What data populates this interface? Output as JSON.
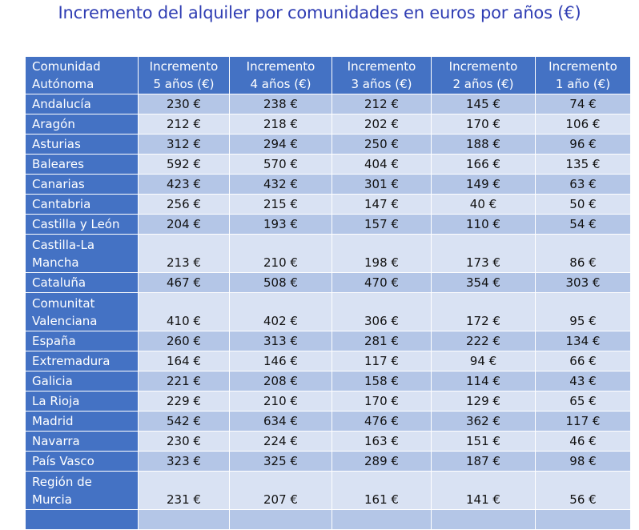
{
  "title": "Incremento del alquiler por comunidades en euros por años (€)",
  "colors": {
    "header": "#4472C4",
    "row_dark": "#B4C6E7",
    "row_light": "#D9E2F3",
    "title": "#2F3DB3"
  },
  "table": {
    "headers": [
      [
        "Comunidad",
        "Autónoma"
      ],
      [
        "Incremento",
        "5 años (€)"
      ],
      [
        "Incremento",
        "4 años (€)"
      ],
      [
        "Incremento",
        "3 años (€)"
      ],
      [
        "Incremento",
        "2 años (€)"
      ],
      [
        "Incremento",
        "1 año (€)"
      ]
    ],
    "rows": [
      {
        "name": "Andalucía",
        "values": [
          "230 €",
          "238 €",
          "212 €",
          "145 €",
          "74 €"
        ]
      },
      {
        "name": "Aragón",
        "values": [
          "212 €",
          "218 €",
          "202 €",
          "170 €",
          "106 €"
        ]
      },
      {
        "name": "Asturias",
        "values": [
          "312 €",
          "294 €",
          "250 €",
          "188 €",
          "96 €"
        ]
      },
      {
        "name": "Baleares",
        "values": [
          "592 €",
          "570 €",
          "404 €",
          "166 €",
          "135 €"
        ]
      },
      {
        "name": "Canarias",
        "values": [
          "423 €",
          "432 €",
          "301 €",
          "149 €",
          "63 €"
        ]
      },
      {
        "name": "Cantabria",
        "values": [
          "256 €",
          "215 €",
          "147 €",
          "40 €",
          "50 €"
        ]
      },
      {
        "name": "Castilla y León",
        "values": [
          "204 €",
          "193 €",
          "157 €",
          "110 €",
          "54 €"
        ]
      },
      {
        "name": "Castilla-La Mancha",
        "values": [
          "213 €",
          "210 €",
          "198 €",
          "173 €",
          "86 €"
        ]
      },
      {
        "name": "Cataluña",
        "values": [
          "467 €",
          "508 €",
          "470 €",
          "354 €",
          "303 €"
        ]
      },
      {
        "name": "Comunitat Valenciana",
        "values": [
          "410 €",
          "402 €",
          "306 €",
          "172 €",
          "95 €"
        ]
      },
      {
        "name": "España",
        "values": [
          "260 €",
          "313 €",
          "281 €",
          "222 €",
          "134 €"
        ]
      },
      {
        "name": "Extremadura",
        "values": [
          "164 €",
          "146 €",
          "117 €",
          "94 €",
          "66 €"
        ]
      },
      {
        "name": "Galicia",
        "values": [
          "221 €",
          "208 €",
          "158 €",
          "114 €",
          "43 €"
        ]
      },
      {
        "name": "La Rioja",
        "values": [
          "229 €",
          "210 €",
          "170 €",
          "129 €",
          "65 €"
        ]
      },
      {
        "name": "Madrid",
        "values": [
          "542 €",
          "634 €",
          "476 €",
          "362 €",
          "117 €"
        ]
      },
      {
        "name": "Navarra",
        "values": [
          "230 €",
          "224 €",
          "163 €",
          "151 €",
          "46 €"
        ]
      },
      {
        "name": "País Vasco",
        "values": [
          "323 €",
          "325 €",
          "289 €",
          "187 €",
          "98 €"
        ]
      },
      {
        "name": "Región de Murcia",
        "values": [
          "231 €",
          "207 €",
          "161 €",
          "141 €",
          "56 €"
        ]
      },
      {
        "name": "",
        "values": [
          "",
          "",
          "",
          "",
          ""
        ]
      }
    ]
  }
}
